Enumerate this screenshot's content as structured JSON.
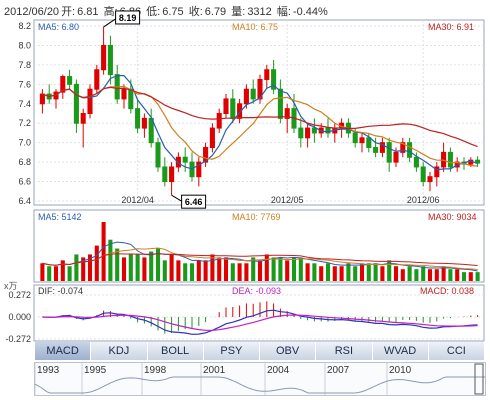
{
  "header": {
    "date": "2012/06/20",
    "open_label": "开:",
    "open": "6.81",
    "high_label": "高:",
    "high": "6.86",
    "low_label": "低:",
    "low": "6.75",
    "close_label": "收:",
    "close": "6.79",
    "volume_label": "量:",
    "volume": "3312",
    "change_label": "幅:",
    "change": "-0.44%"
  },
  "price_panel": {
    "ma5_label": "MA5: 6.80",
    "ma10_label": "MA10: 6.75",
    "ma30_label": "MA30: 6.91",
    "max_marker": "8.19",
    "min_marker": "6.46",
    "y_ticks": [
      "8.2",
      "8.0",
      "7.8",
      "7.6",
      "7.4",
      "7.2",
      "7.0",
      "6.8",
      "6.6",
      "6.4"
    ],
    "x_ticks": [
      "2012/04",
      "2012/05",
      "2012/06"
    ]
  },
  "volume_panel": {
    "ma5_label": "MA5: 5142",
    "ma10_label": "MA10: 7769",
    "ma30_label": "MA30: 9034",
    "unit": "x万"
  },
  "macd_panel": {
    "dif_label": "DIF: -0.074",
    "dea_label": "DEA: -0.093",
    "macd_label": "MACD: 0.038",
    "y_ticks": [
      "0.272",
      "0.000",
      "-0.272"
    ]
  },
  "tabs": [
    "MACD",
    "KDJ",
    "BOLL",
    "PSY",
    "OBV",
    "RSI",
    "WVAD",
    "CCI"
  ],
  "active_tab": "MACD",
  "overview_years": [
    "1993",
    "1995",
    "1998",
    "2001",
    "2004",
    "2007",
    "2010"
  ],
  "colors": {
    "up": "#e00000",
    "down": "#1a9a1a",
    "ma5": "#2a5db0",
    "ma10": "#d08020",
    "ma30": "#c02020",
    "dif": "#3030c0",
    "dea": "#c020c0",
    "accent": "#6a8ab8"
  },
  "chart_data": {
    "type": "candlestick",
    "title": "",
    "x_ticks": [
      "2012/04",
      "2012/05",
      "2012/06"
    ],
    "ylim": [
      6.4,
      8.2
    ],
    "candles": [
      [
        7.4,
        7.55,
        7.3,
        7.5
      ],
      [
        7.5,
        7.6,
        7.4,
        7.45
      ],
      [
        7.45,
        7.55,
        7.35,
        7.52
      ],
      [
        7.52,
        7.7,
        7.45,
        7.68
      ],
      [
        7.68,
        7.75,
        7.55,
        7.6
      ],
      [
        7.6,
        7.65,
        7.1,
        7.2
      ],
      [
        7.2,
        7.35,
        6.95,
        7.3
      ],
      [
        7.3,
        7.6,
        7.25,
        7.55
      ],
      [
        7.55,
        7.8,
        7.5,
        7.75
      ],
      [
        7.75,
        8.19,
        7.7,
        8.0
      ],
      [
        8.0,
        8.1,
        7.6,
        7.7
      ],
      [
        7.7,
        7.8,
        7.4,
        7.45
      ],
      [
        7.45,
        7.6,
        7.35,
        7.55
      ],
      [
        7.55,
        7.65,
        7.3,
        7.35
      ],
      [
        7.35,
        7.45,
        7.1,
        7.15
      ],
      [
        7.15,
        7.3,
        7.05,
        7.25
      ],
      [
        7.25,
        7.35,
        6.95,
        7.0
      ],
      [
        7.0,
        7.05,
        6.7,
        6.75
      ],
      [
        6.75,
        6.85,
        6.55,
        6.6
      ],
      [
        6.6,
        6.8,
        6.46,
        6.75
      ],
      [
        6.75,
        6.9,
        6.7,
        6.85
      ],
      [
        6.85,
        6.95,
        6.7,
        6.8
      ],
      [
        6.8,
        6.9,
        6.6,
        6.65
      ],
      [
        6.65,
        6.85,
        6.55,
        6.8
      ],
      [
        6.8,
        7.0,
        6.75,
        6.95
      ],
      [
        6.95,
        7.2,
        6.9,
        7.15
      ],
      [
        7.15,
        7.35,
        7.1,
        7.3
      ],
      [
        7.3,
        7.5,
        7.25,
        7.45
      ],
      [
        7.45,
        7.55,
        7.2,
        7.25
      ],
      [
        7.25,
        7.45,
        7.2,
        7.4
      ],
      [
        7.4,
        7.6,
        7.35,
        7.55
      ],
      [
        7.55,
        7.65,
        7.4,
        7.45
      ],
      [
        7.45,
        7.7,
        7.4,
        7.65
      ],
      [
        7.65,
        7.8,
        7.55,
        7.75
      ],
      [
        7.75,
        7.85,
        7.5,
        7.55
      ],
      [
        7.55,
        7.65,
        7.2,
        7.25
      ],
      [
        7.25,
        7.4,
        7.1,
        7.35
      ],
      [
        7.35,
        7.5,
        7.1,
        7.15
      ],
      [
        7.15,
        7.25,
        6.95,
        7.05
      ],
      [
        7.05,
        7.2,
        6.95,
        7.15
      ],
      [
        7.15,
        7.25,
        7.0,
        7.1
      ],
      [
        7.1,
        7.2,
        7.05,
        7.15
      ],
      [
        7.15,
        7.25,
        7.05,
        7.1
      ],
      [
        7.1,
        7.2,
        7.0,
        7.15
      ],
      [
        7.15,
        7.25,
        7.05,
        7.2
      ],
      [
        7.2,
        7.25,
        7.05,
        7.1
      ],
      [
        7.1,
        7.15,
        6.95,
        7.0
      ],
      [
        7.0,
        7.1,
        6.9,
        7.05
      ],
      [
        7.05,
        7.1,
        6.9,
        6.95
      ],
      [
        6.95,
        7.05,
        6.85,
        6.9
      ],
      [
        6.9,
        7.05,
        6.85,
        7.0
      ],
      [
        7.0,
        7.05,
        6.7,
        6.8
      ],
      [
        6.8,
        6.95,
        6.75,
        6.9
      ],
      [
        6.9,
        7.05,
        6.85,
        7.0
      ],
      [
        7.0,
        7.05,
        6.8,
        6.85
      ],
      [
        6.85,
        6.9,
        6.7,
        6.75
      ],
      [
        6.75,
        6.8,
        6.55,
        6.6
      ],
      [
        6.6,
        6.7,
        6.5,
        6.65
      ],
      [
        6.65,
        6.8,
        6.55,
        6.75
      ],
      [
        6.75,
        7.0,
        6.7,
        6.9
      ],
      [
        6.9,
        6.95,
        6.7,
        6.75
      ],
      [
        6.75,
        6.85,
        6.7,
        6.8
      ],
      [
        6.8,
        6.85,
        6.72,
        6.78
      ],
      [
        6.78,
        6.85,
        6.75,
        6.82
      ],
      [
        6.82,
        6.86,
        6.75,
        6.79
      ]
    ],
    "volumes": [
      6,
      5,
      5,
      7,
      5,
      9,
      8,
      9,
      12,
      20,
      14,
      11,
      8,
      9,
      9,
      8,
      10,
      11,
      7,
      9,
      7,
      6,
      6,
      7,
      7,
      9,
      8,
      8,
      6,
      6,
      6,
      8,
      7,
      9,
      8,
      8,
      7,
      8,
      8,
      6,
      6,
      5,
      6,
      5,
      5,
      6,
      5,
      6,
      6,
      6,
      5,
      7,
      5,
      4,
      5,
      4,
      5,
      4,
      4,
      5,
      4,
      4,
      3,
      3,
      3
    ],
    "volume_unit": "万"
  }
}
